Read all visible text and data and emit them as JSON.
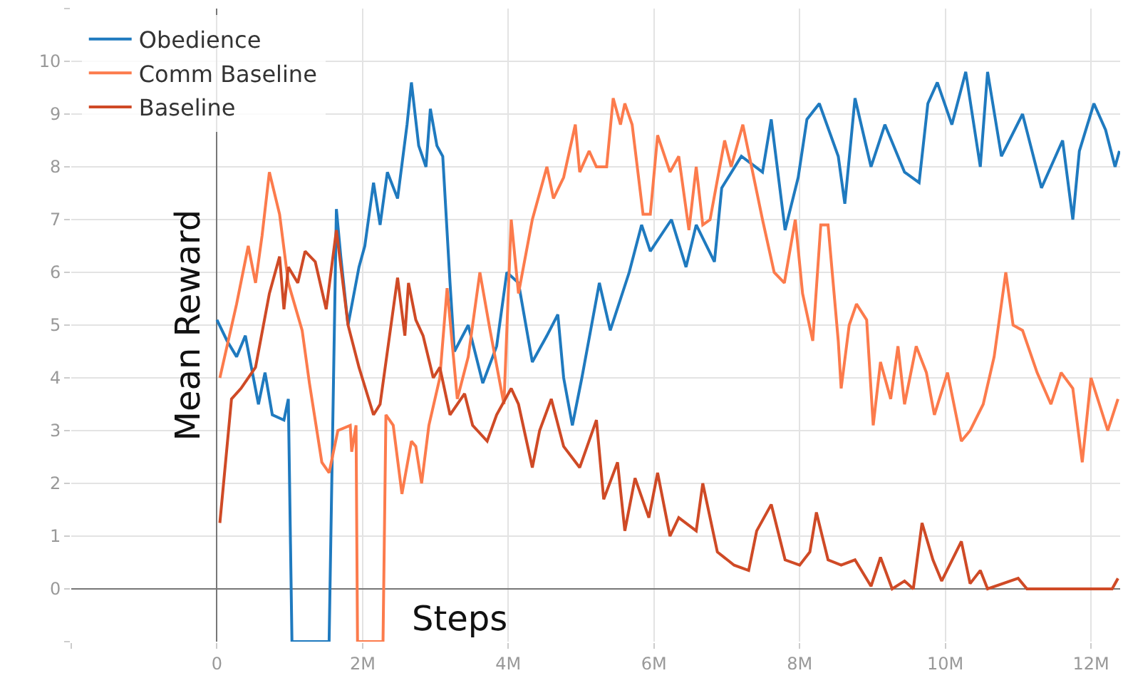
{
  "chart_data": {
    "type": "line",
    "xlabel": "Steps",
    "ylabel": "Mean Reward",
    "xlim": [
      -2000000,
      12400000
    ],
    "ylim": [
      -1,
      11
    ],
    "xticks": [
      {
        "value": -2000000,
        "label": null
      },
      0,
      {
        "value": 2000000,
        "label": "2M"
      },
      {
        "value": 4000000,
        "label": "4M"
      },
      {
        "value": 6000000,
        "label": "6M"
      },
      {
        "value": 8000000,
        "label": "8M"
      },
      {
        "value": 10000000,
        "label": "10M"
      },
      {
        "value": 12000000,
        "label": "12M"
      }
    ],
    "yticks": [
      {
        "value": -1,
        "label": null
      },
      0,
      1,
      2,
      3,
      4,
      5,
      6,
      7,
      8,
      9,
      10,
      {
        "value": 11,
        "label": null
      }
    ],
    "grid": true,
    "legend": "top left",
    "line_style": "solid",
    "series": [
      {
        "name": "Obedience",
        "color": "#1f7abf",
        "x": [
          0,
          140000,
          270000,
          390000,
          570000,
          660000,
          760000,
          920000,
          980000,
          1030000,
          1540000,
          1640000,
          1700000,
          1800000,
          1950000,
          2030000,
          2150000,
          2240000,
          2340000,
          2480000,
          2610000,
          2670000,
          2770000,
          2870000,
          2930000,
          3020000,
          3100000,
          3200000,
          3260000,
          3450000,
          3650000,
          3840000,
          3980000,
          4140000,
          4330000,
          4530000,
          4680000,
          4760000,
          4880000,
          5010000,
          5250000,
          5400000,
          5660000,
          5830000,
          5950000,
          6240000,
          6440000,
          6580000,
          6830000,
          6930000,
          7200000,
          7490000,
          7610000,
          7800000,
          7980000,
          8100000,
          8270000,
          8530000,
          8620000,
          8760000,
          8980000,
          9170000,
          9440000,
          9640000,
          9760000,
          9890000,
          10090000,
          10280000,
          10480000,
          10580000,
          10770000,
          11060000,
          11320000,
          11610000,
          11750000,
          11840000,
          12040000,
          12200000,
          12330000,
          12390000
        ],
        "values": [
          5.1,
          4.7,
          4.4,
          4.8,
          3.5,
          4.1,
          3.3,
          3.2,
          3.6,
          -1,
          -1,
          7.2,
          6.3,
          5.0,
          6.1,
          6.5,
          7.7,
          6.9,
          7.9,
          7.4,
          8.8,
          9.6,
          8.4,
          8.0,
          9.1,
          8.4,
          8.2,
          5.8,
          4.5,
          5.0,
          3.9,
          4.6,
          6.0,
          5.8,
          4.3,
          4.8,
          5.2,
          4.0,
          3.1,
          4.0,
          5.8,
          4.9,
          6.0,
          6.9,
          6.4,
          7.0,
          6.1,
          6.9,
          6.2,
          7.6,
          8.2,
          7.9,
          8.9,
          6.8,
          7.8,
          8.9,
          9.2,
          8.2,
          7.3,
          9.3,
          8.0,
          8.8,
          7.9,
          7.7,
          9.2,
          9.6,
          8.8,
          9.8,
          8.0,
          9.8,
          8.2,
          9.0,
          7.6,
          8.5,
          7.0,
          8.3,
          9.2,
          8.7,
          8.0,
          8.3
        ]
      },
      {
        "name": "Comm Baseline",
        "color": "#fc7b4c",
        "x": [
          40000,
          270000,
          430000,
          530000,
          620000,
          720000,
          860000,
          980000,
          1170000,
          1270000,
          1440000,
          1540000,
          1660000,
          1830000,
          1850000,
          1910000,
          1930000,
          2280000,
          2320000,
          2420000,
          2540000,
          2670000,
          2730000,
          2810000,
          2910000,
          3060000,
          3160000,
          3300000,
          3450000,
          3610000,
          3750000,
          3940000,
          4040000,
          4140000,
          4330000,
          4530000,
          4620000,
          4760000,
          4920000,
          4980000,
          5110000,
          5210000,
          5350000,
          5440000,
          5540000,
          5600000,
          5700000,
          5850000,
          5950000,
          6050000,
          6220000,
          6340000,
          6480000,
          6580000,
          6670000,
          6770000,
          6970000,
          7060000,
          7220000,
          7490000,
          7650000,
          7790000,
          7940000,
          8040000,
          8180000,
          8290000,
          8390000,
          8530000,
          8570000,
          8680000,
          8780000,
          8920000,
          9010000,
          9110000,
          9250000,
          9350000,
          9440000,
          9600000,
          9740000,
          9850000,
          10030000,
          10220000,
          10340000,
          10520000,
          10670000,
          10830000,
          10930000,
          11060000,
          11260000,
          11450000,
          11590000,
          11750000,
          11880000,
          12000000,
          12230000,
          12370000
        ],
        "values": [
          4.0,
          5.4,
          6.5,
          5.8,
          6.7,
          7.9,
          7.1,
          5.8,
          4.9,
          3.9,
          2.4,
          2.2,
          3.0,
          3.1,
          2.6,
          3.1,
          -1,
          -1,
          3.3,
          3.1,
          1.8,
          2.8,
          2.7,
          2.0,
          3.1,
          4.0,
          5.7,
          3.6,
          4.4,
          6.0,
          4.9,
          3.5,
          7.0,
          5.6,
          7.0,
          8.0,
          7.4,
          7.8,
          8.8,
          7.9,
          8.3,
          8.0,
          8.0,
          9.3,
          8.8,
          9.2,
          8.8,
          7.1,
          7.1,
          8.6,
          7.9,
          8.2,
          6.8,
          8.0,
          6.9,
          7.0,
          8.5,
          8.0,
          8.8,
          7.0,
          6.0,
          5.8,
          7.0,
          5.6,
          4.7,
          6.9,
          6.9,
          4.7,
          3.8,
          5.0,
          5.4,
          5.1,
          3.1,
          4.3,
          3.6,
          4.6,
          3.5,
          4.6,
          4.1,
          3.3,
          4.1,
          2.8,
          3.0,
          3.5,
          4.4,
          6.0,
          5.0,
          4.9,
          4.1,
          3.5,
          4.1,
          3.8,
          2.4,
          4.0,
          3.0,
          3.6
        ]
      },
      {
        "name": "Baseline",
        "color": "#cf4a26",
        "x": [
          40000,
          200000,
          330000,
          530000,
          720000,
          860000,
          920000,
          980000,
          1110000,
          1210000,
          1350000,
          1500000,
          1640000,
          1800000,
          1950000,
          2150000,
          2240000,
          2420000,
          2480000,
          2580000,
          2630000,
          2730000,
          2830000,
          2970000,
          3060000,
          3200000,
          3400000,
          3510000,
          3710000,
          3840000,
          4040000,
          4140000,
          4330000,
          4430000,
          4590000,
          4760000,
          4980000,
          5210000,
          5310000,
          5500000,
          5600000,
          5740000,
          5930000,
          6050000,
          6220000,
          6340000,
          6580000,
          6670000,
          6870000,
          7100000,
          7300000,
          7410000,
          7610000,
          7800000,
          8000000,
          8140000,
          8230000,
          8390000,
          8570000,
          8760000,
          8980000,
          9110000,
          9270000,
          9440000,
          9560000,
          9680000,
          9830000,
          9950000,
          10220000,
          10340000,
          10480000,
          10580000,
          11000000,
          11120000,
          12290000,
          12370000
        ],
        "values": [
          1.25,
          3.6,
          3.8,
          4.2,
          5.6,
          6.3,
          5.3,
          6.1,
          5.8,
          6.4,
          6.2,
          5.3,
          6.8,
          5.0,
          4.2,
          3.3,
          3.5,
          5.3,
          5.9,
          4.8,
          5.8,
          5.1,
          4.8,
          4.0,
          4.2,
          3.3,
          3.7,
          3.1,
          2.8,
          3.3,
          3.8,
          3.5,
          2.3,
          3.0,
          3.6,
          2.7,
          2.3,
          3.2,
          1.7,
          2.4,
          1.1,
          2.1,
          1.35,
          2.2,
          1.0,
          1.35,
          1.1,
          2.0,
          0.7,
          0.45,
          0.35,
          1.1,
          1.6,
          0.55,
          0.45,
          0.7,
          1.45,
          0.55,
          0.45,
          0.55,
          0.05,
          0.6,
          0,
          0.15,
          0,
          1.25,
          0.55,
          0.15,
          0.9,
          0.1,
          0.35,
          0,
          0.2,
          0,
          0,
          0.2
        ]
      }
    ]
  }
}
